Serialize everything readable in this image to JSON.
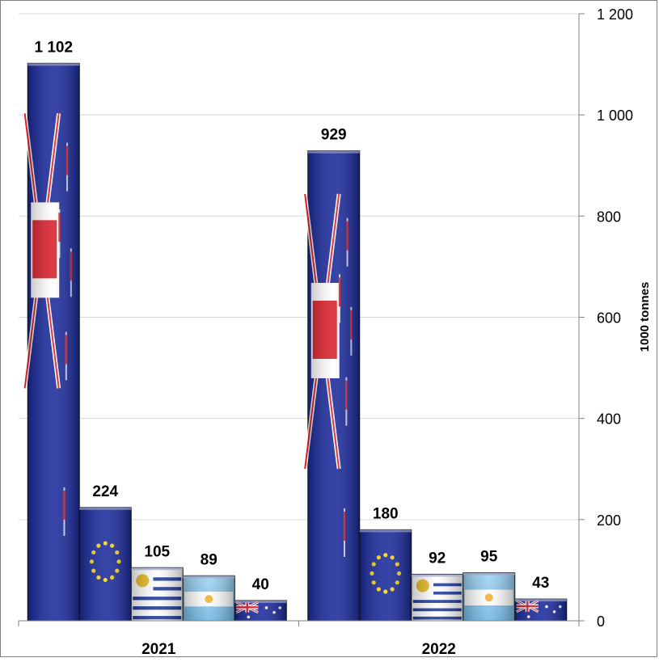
{
  "chart_data": {
    "type": "bar",
    "categories": [
      "2021",
      "2022"
    ],
    "series": [
      {
        "flag": "new-zealand-flag",
        "values": [
          1102,
          929
        ],
        "labels": [
          "1 102",
          "929"
        ]
      },
      {
        "flag": "eu-flag",
        "values": [
          224,
          180
        ],
        "labels": [
          "224",
          "180"
        ]
      },
      {
        "flag": "uruguay-flag",
        "values": [
          105,
          92
        ],
        "labels": [
          "105",
          "92"
        ]
      },
      {
        "flag": "argentina-flag",
        "values": [
          89,
          95
        ],
        "labels": [
          "89",
          "95"
        ]
      },
      {
        "flag": "australia-flag",
        "values": [
          40,
          43
        ],
        "labels": [
          "40",
          "43"
        ]
      }
    ],
    "ylabel": "1000 tonnes",
    "ylim": [
      0,
      1200
    ],
    "yticks": [
      0,
      200,
      400,
      600,
      800,
      1000,
      1200
    ],
    "ytick_labels": [
      "0",
      "200",
      "400",
      "600",
      "800",
      "1 000",
      "1 200"
    ],
    "y_axis_side": "right",
    "grid": true,
    "legend": "none",
    "colors": {
      "bar_blue": "#1a2a9c",
      "flag_red": "#d9202b",
      "eu_star": "#f7d51d",
      "argentina_sky": "#7fc3ea",
      "gridline": "#d9d9d9",
      "axis": "#808080"
    }
  }
}
